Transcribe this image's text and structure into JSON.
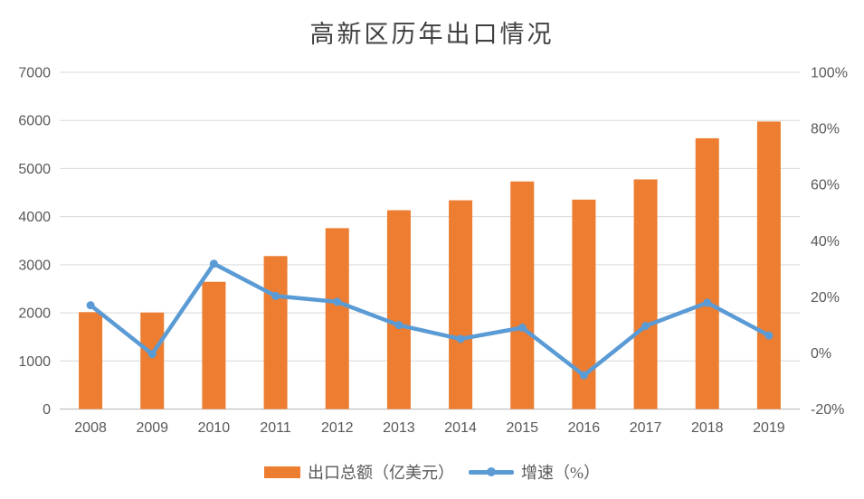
{
  "colors": {
    "background": "#FFFFFF",
    "bar": "#ED7D31",
    "line": "#5B9BD5",
    "gridline": "#D9D9D9",
    "axis_line": "#BFBFBF",
    "tick_text": "#595959",
    "title_text": "#404040"
  },
  "chart_data": {
    "type": "combo-bar-line",
    "title": "高新区历年出口情况",
    "categories": [
      "2008",
      "2009",
      "2010",
      "2011",
      "2012",
      "2013",
      "2014",
      "2015",
      "2016",
      "2017",
      "2018",
      "2019"
    ],
    "series": [
      {
        "name": "出口总额（亿美元）",
        "type": "bar",
        "axis": "left",
        "color": "#ED7D31",
        "values": [
          2015,
          2007,
          2645,
          3180,
          3760,
          4133,
          4340,
          4731,
          4354,
          4774,
          5629,
          5977
        ]
      },
      {
        "name": "增速（%）",
        "type": "line",
        "axis": "right",
        "color": "#5B9BD5",
        "values": [
          17.0,
          -0.4,
          31.8,
          20.3,
          18.2,
          9.9,
          5.0,
          9.0,
          -8.0,
          9.6,
          17.9,
          6.2
        ]
      }
    ],
    "left_axis": {
      "min": 0,
      "max": 7000,
      "step": 1000,
      "tick_labels": [
        "0",
        "1000",
        "2000",
        "3000",
        "4000",
        "5000",
        "6000",
        "7000"
      ]
    },
    "right_axis": {
      "min": -20,
      "max": 100,
      "step": 20,
      "tick_labels": [
        "-20%",
        "0%",
        "20%",
        "40%",
        "60%",
        "80%",
        "100%"
      ]
    },
    "grid": true,
    "legend_position": "bottom"
  }
}
